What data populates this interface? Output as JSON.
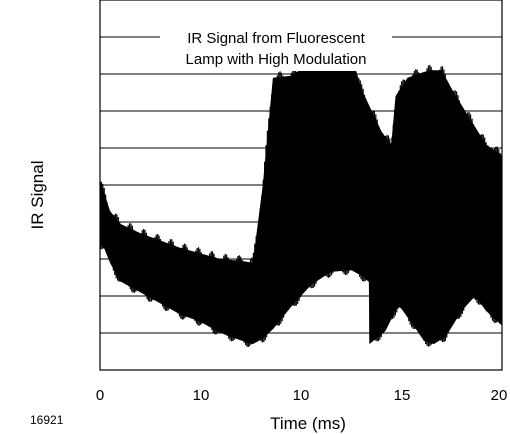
{
  "chart_data": {
    "type": "area",
    "title_lines": [
      "IR Signal from Fluorescent",
      "Lamp with High Modulation"
    ],
    "xlabel": "Time (ms)",
    "ylabel": "IR Signal",
    "x_tick_labels": [
      "0",
      "10",
      "10",
      "15",
      "20"
    ],
    "xlim": [
      0,
      20
    ],
    "grid": true,
    "horizontal_gridlines": 9,
    "series": [
      {
        "color": "#000000",
        "x": [
          0,
          0.2,
          0.5,
          1,
          2,
          3,
          4,
          5,
          6,
          7,
          7.6,
          8.1,
          8.6,
          9.5,
          10.5,
          11.5,
          12.5,
          13,
          14,
          15,
          15.6,
          16.1,
          16.6,
          17.2,
          18,
          19,
          20
        ],
        "upper": [
          5.1,
          4.8,
          4.3,
          3.95,
          3.7,
          3.5,
          3.3,
          3.15,
          3.0,
          2.95,
          2.9,
          5.0,
          7.9,
          7.95,
          8.3,
          8.45,
          8.55,
          7.6,
          6.45,
          5.7,
          5.2,
          5.0,
          4.4,
          3.7,
          3.35,
          3.05,
          2.95
        ],
        "lower": [
          3.4,
          3.3,
          2.9,
          2.4,
          2.1,
          1.8,
          1.5,
          1.3,
          1.0,
          0.8,
          0.7,
          0.85,
          1.1,
          1.7,
          2.3,
          2.65,
          2.7,
          2.55,
          2.1,
          1.65,
          1.2,
          0.8,
          0.7,
          0.9,
          1.6,
          2.2,
          2.6
        ]
      },
      {
        "color": "#000000",
        "x": [
          13.4,
          14.2,
          14.7,
          15.3,
          15.8,
          16.4,
          17.0,
          17.6,
          18.4,
          19.2,
          20
        ],
        "upper": [
          3.0,
          4.3,
          7.4,
          7.9,
          8.0,
          8.1,
          8.1,
          7.5,
          6.8,
          6.1,
          5.8
        ],
        "lower": [
          0.7,
          1.05,
          1.6,
          2.1,
          2.45,
          2.65,
          2.7,
          2.6,
          2.2,
          1.6,
          1.2
        ]
      }
    ],
    "annotations": [
      "16921"
    ]
  }
}
